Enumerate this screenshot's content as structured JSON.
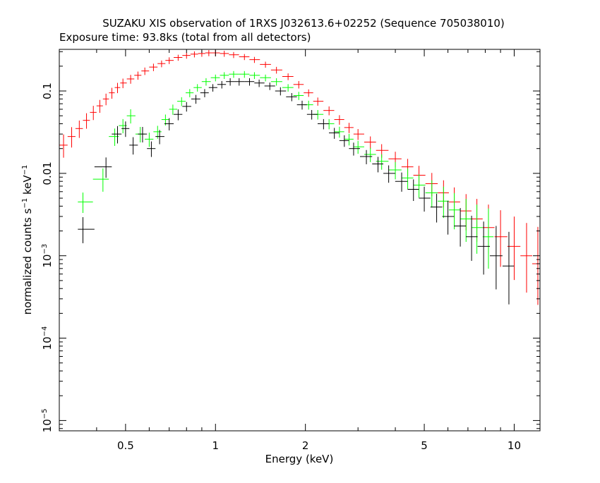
{
  "chart_data": {
    "type": "scatter",
    "title": "SUZAKU XIS observation of 1RXS J032613.6+02252 (Sequence 705038010)",
    "subtitle": "Exposure time: 93.8ks (total from all detectors)",
    "xlabel": "Energy (keV)",
    "ylabel": {
      "base": "normalized counts s",
      "sup1": "−1",
      "mid": " keV",
      "sup2": "−1"
    },
    "x_scale": "log",
    "y_scale": "log",
    "xlim": [
      0.3,
      12.2
    ],
    "ylim": [
      7.5e-06,
      0.32
    ],
    "grid": false,
    "legend": "none",
    "x_ticks": [
      {
        "value": 0.5,
        "label": "0.5"
      },
      {
        "value": 1,
        "label": "1"
      },
      {
        "value": 2,
        "label": "2"
      },
      {
        "value": 5,
        "label": "5"
      },
      {
        "value": 10,
        "label": "10"
      }
    ],
    "y_ticks": [
      {
        "value": 0.1,
        "label": "0.1",
        "exp": ""
      },
      {
        "value": 0.01,
        "label": "0.01",
        "exp": ""
      },
      {
        "value": 0.001,
        "label": "10",
        "exp": "−3"
      },
      {
        "value": 0.0001,
        "label": "10",
        "exp": "−4"
      },
      {
        "value": 1e-05,
        "label": "10",
        "exp": "−5"
      }
    ],
    "series": [
      {
        "color": "#ff0000",
        "x": [
          0.31,
          0.33,
          0.35,
          0.37,
          0.39,
          0.41,
          0.43,
          0.45,
          0.47,
          0.49,
          0.52,
          0.55,
          0.58,
          0.62,
          0.66,
          0.7,
          0.75,
          0.8,
          0.85,
          0.9,
          0.95,
          1.0,
          1.07,
          1.15,
          1.25,
          1.35,
          1.47,
          1.6,
          1.75,
          1.9,
          2.05,
          2.2,
          2.4,
          2.6,
          2.8,
          3.0,
          3.3,
          3.6,
          4.0,
          4.4,
          4.8,
          5.3,
          5.8,
          6.3,
          6.9,
          7.5,
          8.2,
          9.0,
          10.0,
          11.0,
          12.0
        ],
        "y": [
          0.022,
          0.028,
          0.035,
          0.044,
          0.055,
          0.066,
          0.08,
          0.095,
          0.11,
          0.125,
          0.14,
          0.155,
          0.175,
          0.195,
          0.215,
          0.235,
          0.255,
          0.27,
          0.28,
          0.285,
          0.29,
          0.29,
          0.285,
          0.275,
          0.26,
          0.24,
          0.21,
          0.18,
          0.15,
          0.12,
          0.095,
          0.075,
          0.058,
          0.045,
          0.036,
          0.03,
          0.024,
          0.019,
          0.015,
          0.012,
          0.0095,
          0.0075,
          0.0058,
          0.0045,
          0.0035,
          0.0028,
          0.0022,
          0.0017,
          0.0013,
          0.001,
          0.0008
        ],
        "err": [
          0.35,
          0.3,
          0.25,
          0.22,
          0.2,
          0.18,
          0.16,
          0.15,
          0.14,
          0.13,
          0.12,
          0.11,
          0.1,
          0.1,
          0.09,
          0.09,
          0.08,
          0.08,
          0.08,
          0.08,
          0.08,
          0.08,
          0.08,
          0.08,
          0.08,
          0.08,
          0.08,
          0.09,
          0.09,
          0.1,
          0.1,
          0.11,
          0.12,
          0.13,
          0.14,
          0.15,
          0.17,
          0.19,
          0.22,
          0.25,
          0.3,
          0.35,
          0.42,
          0.5,
          0.6,
          0.75,
          0.9,
          1.1,
          1.3,
          1.5,
          1.8
        ]
      },
      {
        "color": "#00ff00",
        "x": [
          0.36,
          0.42,
          0.46,
          0.49,
          0.52,
          0.56,
          0.6,
          0.64,
          0.68,
          0.72,
          0.77,
          0.82,
          0.87,
          0.93,
          1.0,
          1.07,
          1.15,
          1.25,
          1.35,
          1.47,
          1.6,
          1.75,
          1.9,
          2.05,
          2.2,
          2.4,
          2.6,
          2.8,
          3.0,
          3.3,
          3.6,
          4.0,
          4.4,
          4.8,
          5.3,
          5.8,
          6.3,
          6.9,
          7.5,
          8.2
        ],
        "y": [
          0.0045,
          0.0085,
          0.028,
          0.038,
          0.05,
          0.03,
          0.026,
          0.032,
          0.045,
          0.06,
          0.075,
          0.095,
          0.11,
          0.13,
          0.145,
          0.155,
          0.16,
          0.16,
          0.155,
          0.145,
          0.13,
          0.11,
          0.088,
          0.068,
          0.052,
          0.04,
          0.032,
          0.026,
          0.021,
          0.017,
          0.014,
          0.011,
          0.0088,
          0.0072,
          0.0058,
          0.0046,
          0.0036,
          0.0028,
          0.0022,
          0.0017
        ],
        "err": [
          0.3,
          0.35,
          0.25,
          0.2,
          0.2,
          0.22,
          0.2,
          0.18,
          0.15,
          0.14,
          0.12,
          0.11,
          0.1,
          0.1,
          0.09,
          0.09,
          0.09,
          0.09,
          0.09,
          0.09,
          0.1,
          0.1,
          0.11,
          0.12,
          0.13,
          0.14,
          0.15,
          0.16,
          0.18,
          0.2,
          0.22,
          0.25,
          0.3,
          0.35,
          0.42,
          0.5,
          0.6,
          0.75,
          0.9,
          1.2
        ]
      },
      {
        "color": "#000000",
        "x": [
          0.36,
          0.43,
          0.47,
          0.5,
          0.53,
          0.57,
          0.61,
          0.65,
          0.7,
          0.75,
          0.8,
          0.86,
          0.92,
          0.98,
          1.05,
          1.12,
          1.2,
          1.3,
          1.4,
          1.52,
          1.65,
          1.8,
          1.95,
          2.1,
          2.3,
          2.5,
          2.7,
          2.9,
          3.2,
          3.5,
          3.8,
          4.2,
          4.6,
          5.0,
          5.5,
          6.0,
          6.6,
          7.2,
          7.9,
          8.7,
          9.6
        ],
        "y": [
          0.0021,
          0.012,
          0.03,
          0.035,
          0.022,
          0.03,
          0.02,
          0.028,
          0.04,
          0.052,
          0.065,
          0.08,
          0.095,
          0.11,
          0.12,
          0.13,
          0.13,
          0.13,
          0.125,
          0.115,
          0.1,
          0.085,
          0.068,
          0.052,
          0.04,
          0.031,
          0.025,
          0.02,
          0.016,
          0.013,
          0.01,
          0.008,
          0.0064,
          0.005,
          0.0039,
          0.003,
          0.0023,
          0.0017,
          0.0013,
          0.001,
          0.00075
        ],
        "err": [
          0.4,
          0.3,
          0.25,
          0.22,
          0.25,
          0.22,
          0.22,
          0.2,
          0.17,
          0.15,
          0.13,
          0.12,
          0.11,
          0.1,
          0.1,
          0.1,
          0.1,
          0.1,
          0.1,
          0.1,
          0.11,
          0.11,
          0.12,
          0.13,
          0.14,
          0.15,
          0.16,
          0.18,
          0.2,
          0.22,
          0.25,
          0.28,
          0.32,
          0.38,
          0.45,
          0.55,
          0.65,
          0.8,
          1.0,
          1.3,
          1.6
        ]
      }
    ]
  }
}
